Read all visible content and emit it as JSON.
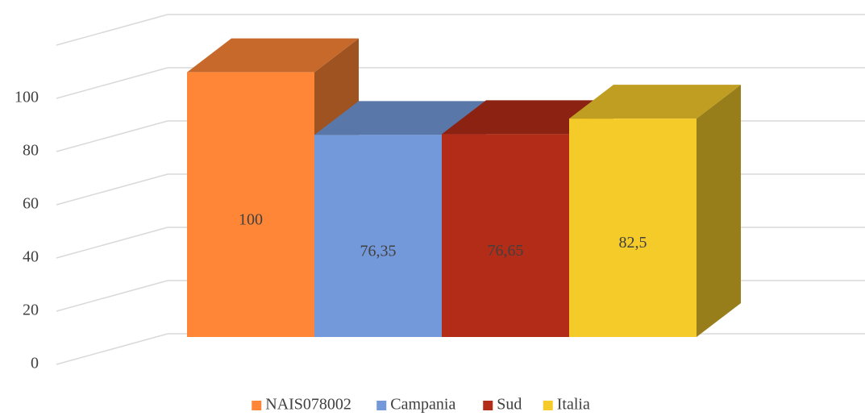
{
  "chart_data": {
    "type": "bar3d",
    "series": [
      {
        "name": "NAIS078002",
        "color": "#FF8636",
        "values": [
          100
        ],
        "value_labels": [
          "100"
        ]
      },
      {
        "name": "Campania",
        "color": "#7499DA",
        "values": [
          76.35
        ],
        "value_labels": [
          "76,35"
        ]
      },
      {
        "name": "Sud",
        "color": "#B22C17",
        "values": [
          76.65
        ],
        "value_labels": [
          "76,65"
        ]
      },
      {
        "name": "Italia",
        "color": "#F5CB2A",
        "values": [
          82.5
        ],
        "value_labels": [
          "82,5"
        ]
      }
    ],
    "ylim": [
      0,
      120
    ],
    "yticks": [
      0,
      20,
      40,
      60,
      80,
      100
    ],
    "grid": true,
    "legend": "bottom"
  }
}
